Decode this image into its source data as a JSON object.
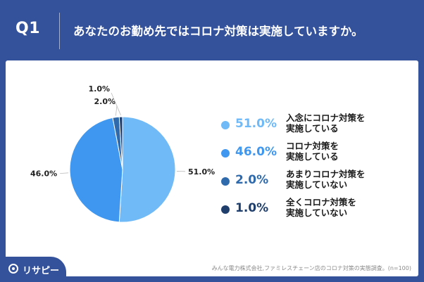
{
  "header": {
    "question": "Q1",
    "title": "あなたのお勤め先ではコロナ対策は実施していますか。"
  },
  "chart_data": {
    "type": "pie",
    "categories": [
      "入念にコロナ対策を実施している",
      "コロナ対策を実施している",
      "あまりコロナ対策を実施していない",
      "全くコロナ対策を実施していない"
    ],
    "values": [
      51.0,
      46.0,
      2.0,
      1.0
    ],
    "data_labels": [
      "51.0%",
      "46.0%",
      "2.0%",
      "1.0%"
    ],
    "colors": [
      "#6fbaf7",
      "#3f97ef",
      "#2f6aac",
      "#1f3e6b"
    ],
    "legend_position": "right"
  },
  "legend": {
    "items": [
      {
        "value": "51.0%",
        "line1": "入念にコロナ対策を",
        "line2": "実施している",
        "color": "#6fbaf7"
      },
      {
        "value": "46.0%",
        "line1": "コロナ対策を",
        "line2": "実施している",
        "color": "#3f97ef"
      },
      {
        "value": "2.0%",
        "line1": "あまりコロナ対策を",
        "line2": "実施していない",
        "color": "#2f6aac"
      },
      {
        "value": "1.0%",
        "line1": "全くコロナ対策を",
        "line2": "実施していない",
        "color": "#1f3e6b"
      }
    ]
  },
  "source": "みんな電力株式会社,ファミレスチェーン店のコロナ対策の実態調査。(n=100)",
  "logo": {
    "text": "リサピー",
    "icon": "logo-mark-icon"
  }
}
